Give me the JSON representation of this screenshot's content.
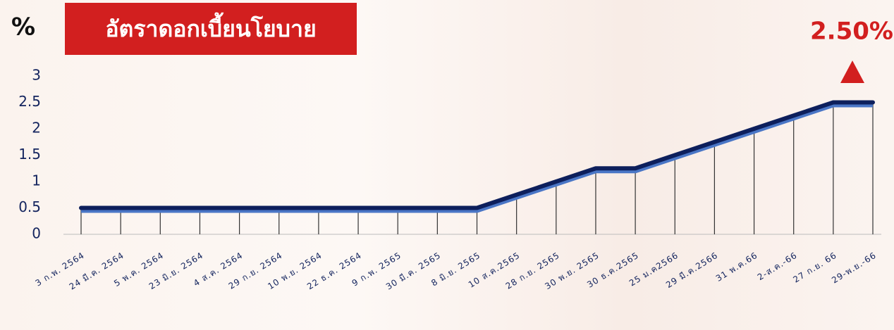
{
  "chart_data": {
    "type": "line",
    "title": "อัตราดอกเบี้ยนโยบาย",
    "y_label": "%",
    "annotation": "2.50%",
    "categories": [
      "3 ก.พ. 2564",
      "24 มี.ค. 2564",
      "5 พ.ค. 2564",
      "23 มิ.ย. 2564",
      "4 ส.ค. 2564",
      "29 ก.ย. 2564",
      "10 พ.ย. 2564",
      "22 ธ.ค. 2564",
      "9 ก.พ. 2565",
      "30 มี.ค. 2565",
      "8 มิ.ย. 2565",
      "10 ส.ค.2565",
      "28 ก.ย. 2565",
      "30 พ.ย. 2565",
      "30 ธ.ค.2565",
      "25 ม.ค2566",
      "29 มี.ค.2566",
      "31 พ.ค.66",
      "2-ส.ค.-66",
      "27 ก.ย. 66",
      "29-พ.ย.-66"
    ],
    "values": [
      0.5,
      0.5,
      0.5,
      0.5,
      0.5,
      0.5,
      0.5,
      0.5,
      0.5,
      0.5,
      0.5,
      0.75,
      1.0,
      1.25,
      1.25,
      1.5,
      1.75,
      2.0,
      2.25,
      2.5,
      2.5
    ],
    "color": "#0d1f5c",
    "ylim": [
      0,
      3
    ],
    "yticks": [
      0,
      0.5,
      1,
      1.5,
      2,
      2.5,
      3
    ]
  }
}
